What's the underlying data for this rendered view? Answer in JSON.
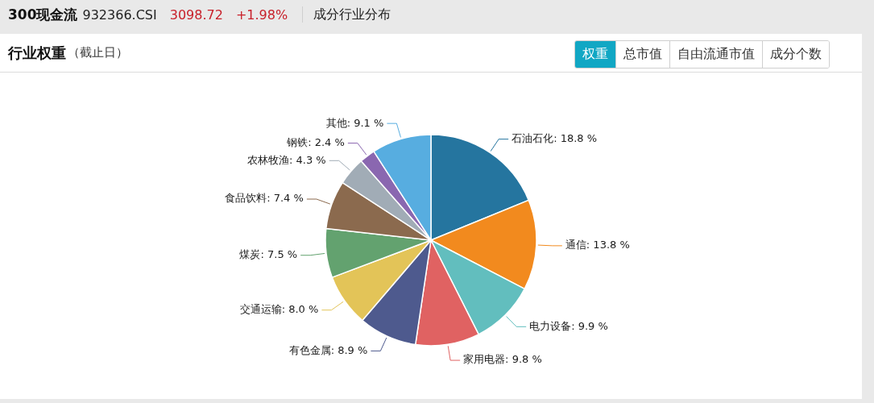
{
  "chart_data": {
    "type": "pie",
    "title": "行业权重",
    "subtitle": "（截止日）",
    "annotations": [
      "300现金流",
      "932366.CSI",
      "3098.72",
      "+1.98%",
      "成分行业分布",
      "权重",
      "总市值",
      "自由流通市值",
      "成分个数"
    ],
    "categories": [
      "石油石化",
      "通信",
      "电力设备",
      "家用电器",
      "有色金属",
      "交通运输",
      "煤炭",
      "食品饮料",
      "农林牧渔",
      "钢铁",
      "其他"
    ],
    "values": [
      18.8,
      13.8,
      9.9,
      9.8,
      8.9,
      8.0,
      7.5,
      7.4,
      4.3,
      2.4,
      9.1
    ],
    "value_labels": [
      "18.8 %",
      "13.8 %",
      "9.9 %",
      "9.8 %",
      "8.9 %",
      "8.0 %",
      "7.5 %",
      "7.4 %",
      "4.3 %",
      "2.4 %",
      "9.1 %"
    ],
    "colors": [
      "#25759f",
      "#f28a1e",
      "#62bebe",
      "#e06262",
      "#4e5a8e",
      "#e3c458",
      "#63a26f",
      "#8b6a4e",
      "#a1acb6",
      "#8a67b0",
      "#57ade0"
    ]
  }
}
